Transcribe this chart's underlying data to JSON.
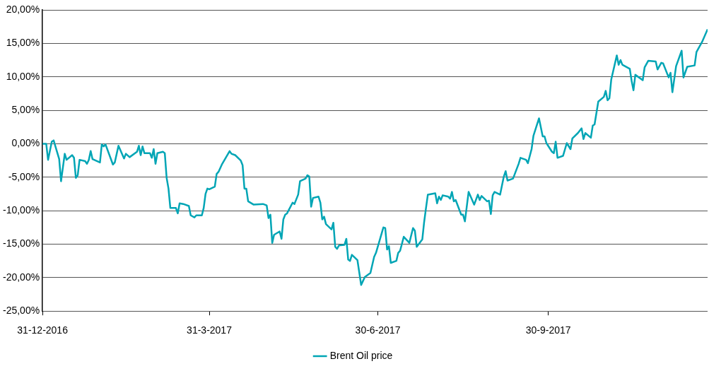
{
  "chart_data": {
    "type": "line",
    "legend": "bottom",
    "grid": "y",
    "marker": "none",
    "line_style": "solid",
    "xlim": [
      "2016-12-31",
      "2017-12-25"
    ],
    "xticks": [
      {
        "value": "2016-12-31",
        "label": "31-12-2016"
      },
      {
        "value": "2017-03-31",
        "label": "31-3-2017"
      },
      {
        "value": "2017-06-30",
        "label": "30-6-2017"
      },
      {
        "value": "2017-09-30",
        "label": "30-9-2017"
      }
    ],
    "ylim": [
      -25,
      20
    ],
    "yticks": [
      {
        "value": -25,
        "label": "-25,00%"
      },
      {
        "value": -20,
        "label": "-20,00%"
      },
      {
        "value": -15,
        "label": "-15,00%"
      },
      {
        "value": -10,
        "label": "-10,00%"
      },
      {
        "value": -5,
        "label": "-5,00%"
      },
      {
        "value": 0,
        "label": "0,00%"
      },
      {
        "value": 5,
        "label": "5,00%"
      },
      {
        "value": 10,
        "label": "10,00%"
      },
      {
        "value": 15,
        "label": "15,00%"
      },
      {
        "value": 20,
        "label": "20,00%"
      }
    ],
    "x": [
      "2016-12-31",
      "2017-01-02",
      "2017-01-03",
      "2017-01-05",
      "2017-01-06",
      "2017-01-09",
      "2017-01-10",
      "2017-01-12",
      "2017-01-13",
      "2017-01-16",
      "2017-01-17",
      "2017-01-18",
      "2017-01-19",
      "2017-01-20",
      "2017-01-23",
      "2017-01-24",
      "2017-01-25",
      "2017-01-26",
      "2017-01-27",
      "2017-01-31",
      "2017-02-01",
      "2017-02-02",
      "2017-02-03",
      "2017-02-07",
      "2017-02-08",
      "2017-02-10",
      "2017-02-13",
      "2017-02-14",
      "2017-02-16",
      "2017-02-20",
      "2017-02-21",
      "2017-02-22",
      "2017-02-23",
      "2017-02-24",
      "2017-02-27",
      "2017-02-28",
      "2017-03-01",
      "2017-03-02",
      "2017-03-03",
      "2017-03-06",
      "2017-03-07",
      "2017-03-08",
      "2017-03-09",
      "2017-03-10",
      "2017-03-13",
      "2017-03-14",
      "2017-03-15",
      "2017-03-17",
      "2017-03-20",
      "2017-03-21",
      "2017-03-23",
      "2017-03-24",
      "2017-03-27",
      "2017-03-28",
      "2017-03-29",
      "2017-03-30",
      "2017-03-31",
      "2017-04-03",
      "2017-04-04",
      "2017-04-05",
      "2017-04-07",
      "2017-04-11",
      "2017-04-12",
      "2017-04-14",
      "2017-04-17",
      "2017-04-18",
      "2017-04-19",
      "2017-04-20",
      "2017-04-21",
      "2017-04-24",
      "2017-04-29",
      "2017-05-01",
      "2017-05-02",
      "2017-05-03",
      "2017-05-04",
      "2017-05-05",
      "2017-05-08",
      "2017-05-09",
      "2017-05-10",
      "2017-05-11",
      "2017-05-12",
      "2017-05-15",
      "2017-05-16",
      "2017-05-18",
      "2017-05-19",
      "2017-05-22",
      "2017-05-23",
      "2017-05-24",
      "2017-05-25",
      "2017-05-26",
      "2017-05-29",
      "2017-05-30",
      "2017-05-31",
      "2017-06-01",
      "2017-06-02",
      "2017-06-05",
      "2017-06-06",
      "2017-06-07",
      "2017-06-08",
      "2017-06-09",
      "2017-06-12",
      "2017-06-13",
      "2017-06-14",
      "2017-06-15",
      "2017-06-16",
      "2017-06-19",
      "2017-06-21",
      "2017-06-23",
      "2017-06-26",
      "2017-06-28",
      "2017-06-29",
      "2017-07-03",
      "2017-07-04",
      "2017-07-05",
      "2017-07-06",
      "2017-07-07",
      "2017-07-10",
      "2017-07-11",
      "2017-07-12",
      "2017-07-14",
      "2017-07-17",
      "2017-07-19",
      "2017-07-20",
      "2017-07-21",
      "2017-07-24",
      "2017-07-25",
      "2017-07-26",
      "2017-07-27",
      "2017-07-31",
      "2017-08-01",
      "2017-08-02",
      "2017-08-03",
      "2017-08-04",
      "2017-08-07",
      "2017-08-08",
      "2017-08-09",
      "2017-08-10",
      "2017-08-11",
      "2017-08-14",
      "2017-08-15",
      "2017-08-16",
      "2017-08-18",
      "2017-08-21",
      "2017-08-23",
      "2017-08-24",
      "2017-08-25",
      "2017-08-28",
      "2017-08-29",
      "2017-08-30",
      "2017-08-31",
      "2017-09-01",
      "2017-09-04",
      "2017-09-06",
      "2017-09-07",
      "2017-09-08",
      "2017-09-11",
      "2017-09-14",
      "2017-09-15",
      "2017-09-18",
      "2017-09-19",
      "2017-09-21",
      "2017-09-22",
      "2017-09-25",
      "2017-09-27",
      "2017-09-28",
      "2017-09-29",
      "2017-10-02",
      "2017-10-03",
      "2017-10-04",
      "2017-10-05",
      "2017-10-08",
      "2017-10-10",
      "2017-10-12",
      "2017-10-13",
      "2017-10-16",
      "2017-10-18",
      "2017-10-19",
      "2017-10-20",
      "2017-10-23",
      "2017-10-24",
      "2017-10-25",
      "2017-10-27",
      "2017-10-30",
      "2017-10-31",
      "2017-11-01",
      "2017-11-02",
      "2017-11-03",
      "2017-11-06",
      "2017-11-07",
      "2017-11-08",
      "2017-11-09",
      "2017-11-13",
      "2017-11-14",
      "2017-11-15",
      "2017-11-16",
      "2017-11-20",
      "2017-11-21",
      "2017-11-23",
      "2017-11-27",
      "2017-11-28",
      "2017-11-30",
      "2017-12-01",
      "2017-12-04",
      "2017-12-05",
      "2017-12-06",
      "2017-12-08",
      "2017-12-11",
      "2017-12-12",
      "2017-12-14",
      "2017-12-18",
      "2017-12-19",
      "2017-12-22",
      "2017-12-25"
    ],
    "series": [
      {
        "name": "Brent Oil price",
        "color": "#00a5b5",
        "values": [
          0,
          0,
          -2.4,
          0.3,
          0.5,
          -2.3,
          -5.6,
          -1.5,
          -2.4,
          -1.7,
          -2.1,
          -5.1,
          -4.7,
          -2.4,
          -2.6,
          -3.0,
          -2.4,
          -1.1,
          -2.3,
          -2.8,
          -0.1,
          -0.4,
          -0.1,
          -3.1,
          -2.8,
          -0.3,
          -2.2,
          -1.5,
          -2.0,
          -1.2,
          -0.3,
          -1.7,
          -0.4,
          -1.4,
          -1.4,
          -2.1,
          -0.8,
          -3.0,
          -1.4,
          -1.2,
          -1.4,
          -5.1,
          -6.7,
          -9.6,
          -9.6,
          -10.4,
          -8.9,
          -9.0,
          -9.3,
          -10.7,
          -11.0,
          -10.7,
          -10.7,
          -9.6,
          -7.5,
          -6.7,
          -6.8,
          -6.4,
          -4.5,
          -4.2,
          -3.0,
          -1.1,
          -1.5,
          -1.7,
          -2.5,
          -3.2,
          -6.7,
          -6.7,
          -8.6,
          -9.1,
          -9.0,
          -9.2,
          -11.1,
          -10.6,
          -14.8,
          -13.6,
          -13.1,
          -14.2,
          -11.3,
          -10.6,
          -10.4,
          -8.8,
          -9.0,
          -7.6,
          -5.6,
          -5.2,
          -4.7,
          -4.9,
          -9.4,
          -8.1,
          -7.9,
          -8.8,
          -11.3,
          -10.9,
          -12.0,
          -12.8,
          -11.8,
          -15.4,
          -15.7,
          -15.2,
          -15.1,
          -14.2,
          -17.3,
          -17.5,
          -16.6,
          -17.4,
          -21.1,
          -19.9,
          -19.3,
          -16.9,
          -16.3,
          -12.5,
          -12.6,
          -15.8,
          -15.3,
          -17.8,
          -17.5,
          -16.3,
          -16.0,
          -13.9,
          -14.8,
          -12.6,
          -13.0,
          -15.4,
          -14.3,
          -11.7,
          -9.6,
          -7.6,
          -7.4,
          -8.9,
          -7.9,
          -8.4,
          -7.7,
          -7.9,
          -8.2,
          -7.2,
          -8.6,
          -8.4,
          -10.6,
          -10.6,
          -11.6,
          -7.2,
          -9.1,
          -7.6,
          -8.4,
          -7.8,
          -8.6,
          -8.5,
          -10.5,
          -7.7,
          -7.2,
          -7.6,
          -4.9,
          -4.1,
          -5.5,
          -5.2,
          -3.0,
          -2.1,
          -2.4,
          -2.9,
          -0.8,
          1.2,
          3.8,
          1.1,
          1.1,
          0.1,
          -1.2,
          -1.4,
          0.3,
          -2.1,
          -1.8,
          0.1,
          -0.8,
          0.8,
          1.6,
          2.3,
          0.7,
          1.6,
          0.9,
          2.7,
          2.9,
          6.3,
          7.0,
          7.9,
          6.5,
          6.8,
          9.6,
          13.2,
          11.8,
          12.5,
          11.8,
          11.2,
          9.4,
          8.0,
          10.3,
          9.5,
          11.4,
          12.4,
          12.3,
          11.1,
          12.1,
          12.0,
          9.9,
          10.6,
          7.7,
          11.6,
          13.9,
          9.9,
          11.5,
          11.7,
          13.7,
          15.2,
          17.1
        ]
      }
    ]
  }
}
